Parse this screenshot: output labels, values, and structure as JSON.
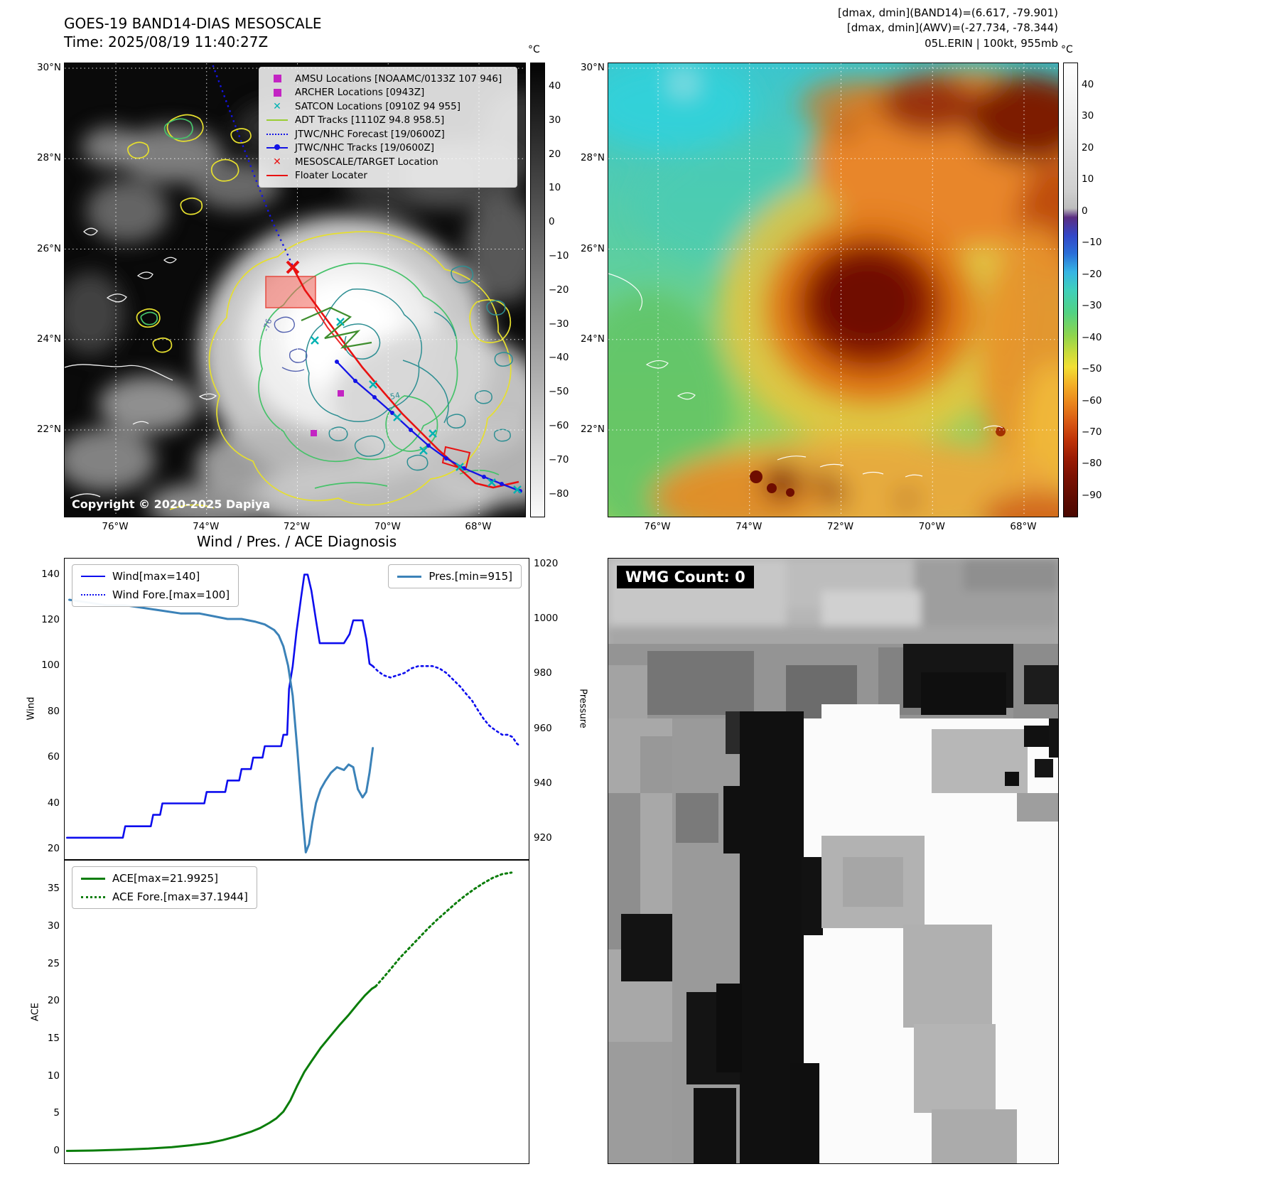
{
  "panel_tl": {
    "title": "GOES-19 BAND14-DIAS MESOSCALE",
    "subtitle": "Time: 2025/08/19 11:40:27Z",
    "copyright": "Copyright © 2020-2025 Dapiya",
    "legend_items": [
      {
        "label": "AMSU Locations [NOAAMC/0133Z 107 946]",
        "marker": "square",
        "color": "#c324c3"
      },
      {
        "label": "ARCHER Locations [0943Z]",
        "marker": "square",
        "color": "#c324c3"
      },
      {
        "label": "SATCON Locations [0910Z 94 955]",
        "marker": "x",
        "color": "#00b2b2"
      },
      {
        "label": "ADT Tracks [1110Z 94.8 958.5]",
        "marker": "line",
        "color": "#9acd32"
      },
      {
        "label": "JTWC/NHC Forecast [19/0600Z]",
        "marker": "dotted-line",
        "color": "#1414e6"
      },
      {
        "label": "JTWC/NHC Tracks [19/0600Z]",
        "marker": "line-dot",
        "color": "#1414e6"
      },
      {
        "label": "MESOSCALE/TARGET Location",
        "marker": "x",
        "color": "#e81212"
      },
      {
        "label": "Floater Locater",
        "marker": "line",
        "color": "#e81212"
      }
    ],
    "yticks": [
      "30°N",
      "28°N",
      "26°N",
      "24°N",
      "22°N"
    ],
    "xticks": [
      "76°W",
      "74°W",
      "72°W",
      "70°W",
      "68°W"
    ],
    "colorbar": {
      "unit": "°C",
      "ticks": [
        "40",
        "30",
        "20",
        "10",
        "0",
        "−10",
        "−20",
        "−30",
        "−40",
        "−50",
        "−60",
        "−70",
        "−80"
      ]
    },
    "contour_labels": {
      "inner": "-76",
      "outer": "-54"
    }
  },
  "panel_tr": {
    "header_lines": [
      "[dmax, dmin](BAND14)=(6.617, -79.901)",
      "[dmax, dmin](AWV)=(-27.734, -78.344)",
      "05L.ERIN | 100kt, 955mb"
    ],
    "yticks": [
      "30°N",
      "28°N",
      "26°N",
      "24°N",
      "22°N"
    ],
    "xticks": [
      "76°W",
      "74°W",
      "72°W",
      "70°W",
      "68°W"
    ],
    "colorbar": {
      "unit": "°C",
      "ticks": [
        "40",
        "30",
        "20",
        "10",
        "0",
        "−10",
        "−20",
        "−30",
        "−40",
        "−50",
        "−60",
        "−70",
        "−80",
        "−90"
      ]
    }
  },
  "diagnosis_title": "Wind / Pres. / ACE Diagnosis",
  "chart_data": [
    {
      "type": "line",
      "title": "Wind / Pres. / ACE Diagnosis",
      "x_axis": {
        "label": "",
        "range": [
          0,
          1
        ],
        "ticks": []
      },
      "left_axis": {
        "label": "Wind",
        "range": [
          15,
          147
        ],
        "ticks": [
          20,
          40,
          60,
          80,
          100,
          120,
          140
        ]
      },
      "right_axis": {
        "label": "Pressure",
        "range": [
          912,
          1022
        ],
        "ticks": [
          920,
          940,
          960,
          980,
          1000,
          1020
        ]
      },
      "grid": false,
      "legend_position": "upper-left and upper-right",
      "series": [
        {
          "name": "Wind[max=140]",
          "axis": "left",
          "style": "solid",
          "color": "#0d0dee",
          "width": 2.6,
          "points": [
            [
              0.005,
              25
            ],
            [
              0.05,
              25
            ],
            [
              0.09,
              25
            ],
            [
              0.125,
              25
            ],
            [
              0.13,
              30
            ],
            [
              0.185,
              30
            ],
            [
              0.19,
              35
            ],
            [
              0.205,
              35
            ],
            [
              0.21,
              40
            ],
            [
              0.3,
              40
            ],
            [
              0.305,
              45
            ],
            [
              0.345,
              45
            ],
            [
              0.35,
              50
            ],
            [
              0.375,
              50
            ],
            [
              0.38,
              55
            ],
            [
              0.4,
              55
            ],
            [
              0.405,
              60
            ],
            [
              0.425,
              60
            ],
            [
              0.43,
              65
            ],
            [
              0.465,
              65
            ],
            [
              0.47,
              70
            ],
            [
              0.478,
              70
            ],
            [
              0.482,
              90
            ],
            [
              0.49,
              100
            ],
            [
              0.498,
              115
            ],
            [
              0.508,
              130
            ],
            [
              0.515,
              140
            ],
            [
              0.522,
              140
            ],
            [
              0.53,
              133
            ],
            [
              0.54,
              120
            ],
            [
              0.548,
              110
            ],
            [
              0.56,
              110
            ],
            [
              0.6,
              110
            ],
            [
              0.612,
              114
            ],
            [
              0.62,
              120
            ],
            [
              0.64,
              120
            ],
            [
              0.648,
              112
            ],
            [
              0.655,
              101
            ],
            [
              0.662,
              100
            ]
          ]
        },
        {
          "name": "Wind Fore.[max=100]",
          "axis": "left",
          "style": "dotted",
          "color": "#0d0dee",
          "width": 2.6,
          "points": [
            [
              0.662,
              100
            ],
            [
              0.672,
              98
            ],
            [
              0.685,
              96
            ],
            [
              0.7,
              95
            ],
            [
              0.715,
              96
            ],
            [
              0.73,
              97
            ],
            [
              0.745,
              99
            ],
            [
              0.76,
              100
            ],
            [
              0.775,
              100
            ],
            [
              0.79,
              100
            ],
            [
              0.805,
              99
            ],
            [
              0.82,
              97
            ],
            [
              0.835,
              94
            ],
            [
              0.85,
              91
            ],
            [
              0.862,
              88
            ],
            [
              0.875,
              85
            ],
            [
              0.887,
              81
            ],
            [
              0.9,
              77
            ],
            [
              0.912,
              74
            ],
            [
              0.925,
              72
            ],
            [
              0.94,
              70
            ],
            [
              0.952,
              70
            ],
            [
              0.962,
              69
            ],
            [
              0.972,
              66
            ],
            [
              0.98,
              65
            ]
          ]
        },
        {
          "name": "Pres.[min=915]",
          "axis": "right",
          "style": "solid",
          "color": "#3b82b8",
          "width": 3,
          "points": [
            [
              0.01,
              1007
            ],
            [
              0.05,
              1006
            ],
            [
              0.09,
              1005
            ],
            [
              0.13,
              1005
            ],
            [
              0.17,
              1004
            ],
            [
              0.21,
              1003
            ],
            [
              0.25,
              1002
            ],
            [
              0.29,
              1002
            ],
            [
              0.32,
              1001
            ],
            [
              0.35,
              1000
            ],
            [
              0.38,
              1000
            ],
            [
              0.41,
              999
            ],
            [
              0.43,
              998
            ],
            [
              0.45,
              996
            ],
            [
              0.46,
              994
            ],
            [
              0.47,
              990
            ],
            [
              0.48,
              983
            ],
            [
              0.49,
              972
            ],
            [
              0.5,
              952
            ],
            [
              0.51,
              930
            ],
            [
              0.518,
              915
            ],
            [
              0.525,
              918
            ],
            [
              0.532,
              926
            ],
            [
              0.54,
              933
            ],
            [
              0.55,
              938
            ],
            [
              0.56,
              941
            ],
            [
              0.572,
              944
            ],
            [
              0.585,
              946
            ],
            [
              0.6,
              945
            ],
            [
              0.61,
              947
            ],
            [
              0.62,
              946
            ],
            [
              0.63,
              938
            ],
            [
              0.64,
              935
            ],
            [
              0.648,
              937
            ],
            [
              0.655,
              944
            ],
            [
              0.662,
              953
            ]
          ]
        }
      ]
    },
    {
      "type": "line",
      "title": "ACE",
      "x_axis": {
        "label": "",
        "range": [
          0,
          1
        ],
        "ticks": []
      },
      "left_axis": {
        "label": "ACE",
        "range": [
          -1.8,
          38.8
        ],
        "ticks": [
          0,
          5,
          10,
          15,
          20,
          25,
          30,
          35
        ]
      },
      "grid": false,
      "legend_position": "upper-left",
      "series": [
        {
          "name": "ACE[max=21.9925]",
          "axis": "left",
          "style": "solid",
          "color": "#0a7d0a",
          "width": 3,
          "points": [
            [
              0.005,
              0.05
            ],
            [
              0.06,
              0.1
            ],
            [
              0.12,
              0.2
            ],
            [
              0.18,
              0.35
            ],
            [
              0.23,
              0.55
            ],
            [
              0.27,
              0.8
            ],
            [
              0.31,
              1.1
            ],
            [
              0.34,
              1.5
            ],
            [
              0.37,
              2.0
            ],
            [
              0.4,
              2.6
            ],
            [
              0.42,
              3.1
            ],
            [
              0.44,
              3.8
            ],
            [
              0.455,
              4.4
            ],
            [
              0.47,
              5.3
            ],
            [
              0.485,
              6.8
            ],
            [
              0.5,
              8.8
            ],
            [
              0.515,
              10.6
            ],
            [
              0.53,
              12.0
            ],
            [
              0.55,
              13.8
            ],
            [
              0.57,
              15.3
            ],
            [
              0.59,
              16.8
            ],
            [
              0.61,
              18.2
            ],
            [
              0.63,
              19.7
            ],
            [
              0.645,
              20.8
            ],
            [
              0.66,
              21.7
            ],
            [
              0.668,
              22.0
            ]
          ]
        },
        {
          "name": "ACE Fore.[max=37.1944]",
          "axis": "left",
          "style": "dotted",
          "color": "#0a7d0a",
          "width": 3,
          "points": [
            [
              0.668,
              22.0
            ],
            [
              0.685,
              23.2
            ],
            [
              0.7,
              24.3
            ],
            [
              0.72,
              25.8
            ],
            [
              0.74,
              27.1
            ],
            [
              0.76,
              28.4
            ],
            [
              0.78,
              29.7
            ],
            [
              0.8,
              30.9
            ],
            [
              0.82,
              32.0
            ],
            [
              0.84,
              33.1
            ],
            [
              0.86,
              34.1
            ],
            [
              0.88,
              35.0
            ],
            [
              0.9,
              35.8
            ],
            [
              0.92,
              36.5
            ],
            [
              0.94,
              37.0
            ],
            [
              0.96,
              37.2
            ]
          ]
        }
      ]
    }
  ],
  "panel_br": {
    "wmg_label": "WMG Count: 0"
  }
}
